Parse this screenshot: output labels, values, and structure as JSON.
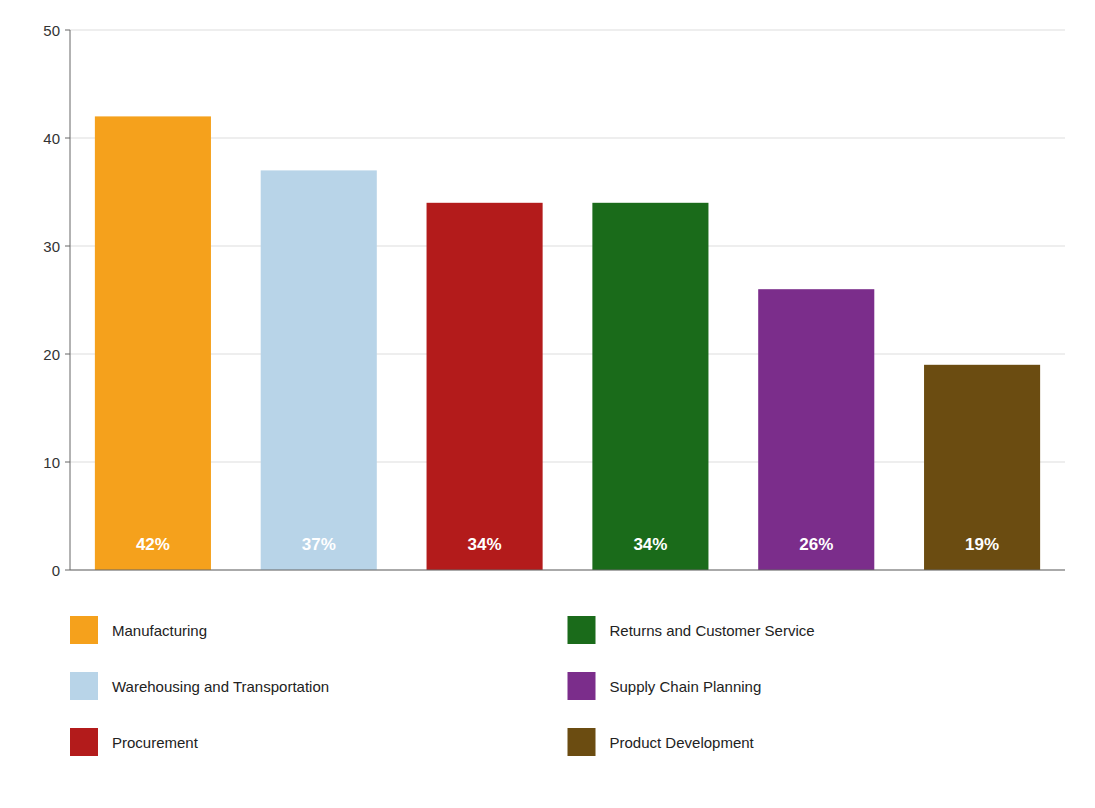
{
  "chart_data": {
    "type": "bar",
    "categories": [
      "Manufacturing",
      "Warehousing and Transportation",
      "Procurement",
      "Returns and Customer Service",
      "Supply Chain Planning",
      "Product Development"
    ],
    "values": [
      42,
      37,
      34,
      34,
      26,
      19
    ],
    "value_labels": [
      "42%",
      "37%",
      "34%",
      "34%",
      "26%",
      "19%"
    ],
    "colors": [
      "#F5A11C",
      "#B8D4E8",
      "#B31B1B",
      "#1A6B1A",
      "#7B2D8B",
      "#6B4C11"
    ],
    "ylim": [
      0,
      50
    ],
    "yticks": [
      0,
      10,
      20,
      30,
      40,
      50
    ],
    "grid": true,
    "data_labels": true,
    "tick_labels": "y",
    "legend": "bottom"
  }
}
